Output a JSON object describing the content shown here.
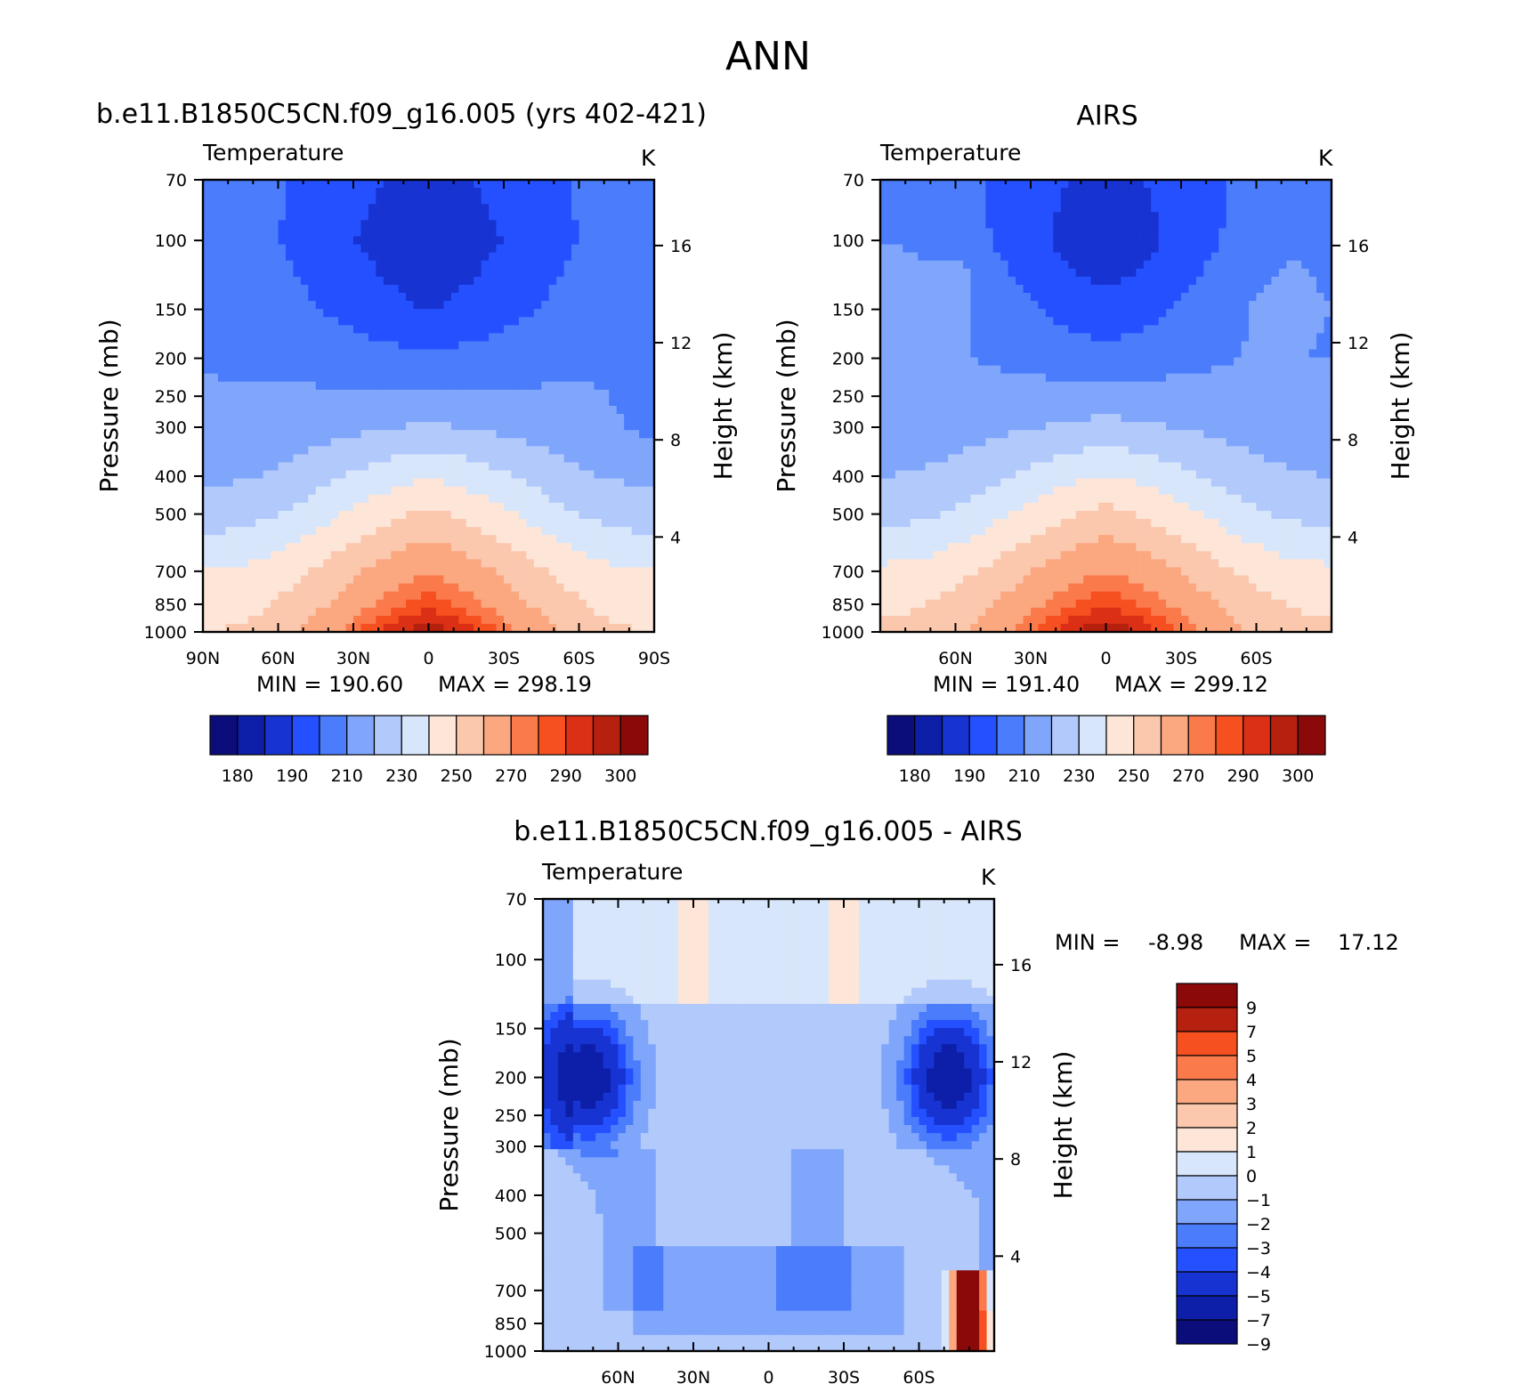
{
  "title": "ANN",
  "colors": {
    "abs_levels": [
      "#0b0e7a",
      "#0d1fa8",
      "#1733d1",
      "#2550ff",
      "#4a7cfb",
      "#7fa6fb",
      "#b2c9fb",
      "#d8e6fb",
      "#fde6d8",
      "#fbc8ae",
      "#fba77f",
      "#fb7a4b",
      "#f64f20",
      "#db3016",
      "#b5200f",
      "#8b0a09"
    ],
    "diff_levels": [
      "#0b0e7a",
      "#0d1fa8",
      "#1733d1",
      "#2550ff",
      "#4a7cfb",
      "#7fa6fb",
      "#b2c9fb",
      "#d8e6fb",
      "#fde6d8",
      "#fbc8ae",
      "#fba77f",
      "#fb7a4b",
      "#f64f20",
      "#b5200f",
      "#8b0a09"
    ]
  },
  "chart_data": [
    {
      "type": "heatmap",
      "title": "b.e11.B1850C5CN.f09_g16.005 (yrs 402-421)",
      "subtitle": "Temperature",
      "units": "K",
      "xlabel": "",
      "ylabel": "Pressure (mb)",
      "y2label": "Height (km)",
      "x_ticks": [
        "90N",
        "60N",
        "30N",
        "0",
        "30S",
        "60S",
        "90S"
      ],
      "x_tick_values": [
        90,
        60,
        30,
        0,
        -30,
        -60,
        -90
      ],
      "y_ticks": [
        70,
        100,
        150,
        200,
        250,
        300,
        400,
        500,
        700,
        850,
        1000
      ],
      "y2_ticks": [
        16,
        12,
        8,
        4
      ],
      "xlim": [
        90,
        -90
      ],
      "ylim": [
        1000,
        70
      ],
      "min_text": "MIN = 190.60",
      "max_text": "MAX = 298.19",
      "colorbar_labels": [
        "180",
        "190",
        "210",
        "230",
        "250",
        "270",
        "290",
        "300"
      ],
      "estimated_profile": {
        "pressure": [
          70,
          100,
          150,
          200,
          250,
          300,
          400,
          500,
          700,
          850,
          1000
        ],
        "equator_K": [
          197,
          192,
          200,
          212,
          222,
          231,
          249,
          262,
          279,
          288,
          298
        ],
        "pole_K": [
          214,
          214,
          217,
          219,
          221,
          222,
          228,
          235,
          250,
          255,
          260
        ]
      }
    },
    {
      "type": "heatmap",
      "title": "AIRS",
      "subtitle": "Temperature",
      "units": "K",
      "xlabel": "",
      "ylabel": "Pressure (mb)",
      "y2label": "Height (km)",
      "x_ticks": [
        "60N",
        "30N",
        "0",
        "30S",
        "60S"
      ],
      "x_tick_values": [
        60,
        30,
        0,
        -30,
        -60
      ],
      "y_ticks": [
        70,
        100,
        150,
        200,
        250,
        300,
        400,
        500,
        700,
        850,
        1000
      ],
      "y2_ticks": [
        16,
        12,
        8,
        4
      ],
      "xlim": [
        90,
        -90
      ],
      "ylim": [
        1000,
        70
      ],
      "min_text": "MIN = 191.40",
      "max_text": "MAX = 299.12",
      "colorbar_labels": [
        "180",
        "190",
        "210",
        "230",
        "250",
        "270",
        "290",
        "300"
      ],
      "estimated_profile": {
        "pressure": [
          70,
          100,
          150,
          200,
          250,
          300,
          400,
          500,
          700,
          850,
          1000
        ],
        "equator_K": [
          197,
          193,
          203,
          214,
          224,
          233,
          250,
          263,
          280,
          289,
          299
        ],
        "pole_K": [
          216,
          220,
          225,
          222,
          223,
          224,
          230,
          237,
          252,
          258,
          262
        ]
      }
    },
    {
      "type": "heatmap",
      "title": "b.e11.B1850C5CN.f09_g16.005 - AIRS",
      "subtitle": "Temperature",
      "units": "K",
      "xlabel": "",
      "ylabel": "Pressure (mb)",
      "y2label": "Height (km)",
      "x_ticks": [
        "60N",
        "30N",
        "0",
        "30S",
        "60S"
      ],
      "x_tick_values": [
        60,
        30,
        0,
        -30,
        -60
      ],
      "y_ticks": [
        70,
        100,
        150,
        200,
        250,
        300,
        400,
        500,
        700,
        850,
        1000
      ],
      "y2_ticks": [
        16,
        12,
        8,
        4
      ],
      "xlim": [
        90,
        -90
      ],
      "ylim": [
        1000,
        70
      ],
      "min_label": "MIN =",
      "min_value": "-8.98",
      "max_label": "MAX =",
      "max_value": "17.12",
      "colorbar_labels": [
        "9",
        "7",
        "5",
        "4",
        "3",
        "2",
        "1",
        "0",
        "−1",
        "−2",
        "−3",
        "−4",
        "−5",
        "−7",
        "−9"
      ]
    }
  ]
}
